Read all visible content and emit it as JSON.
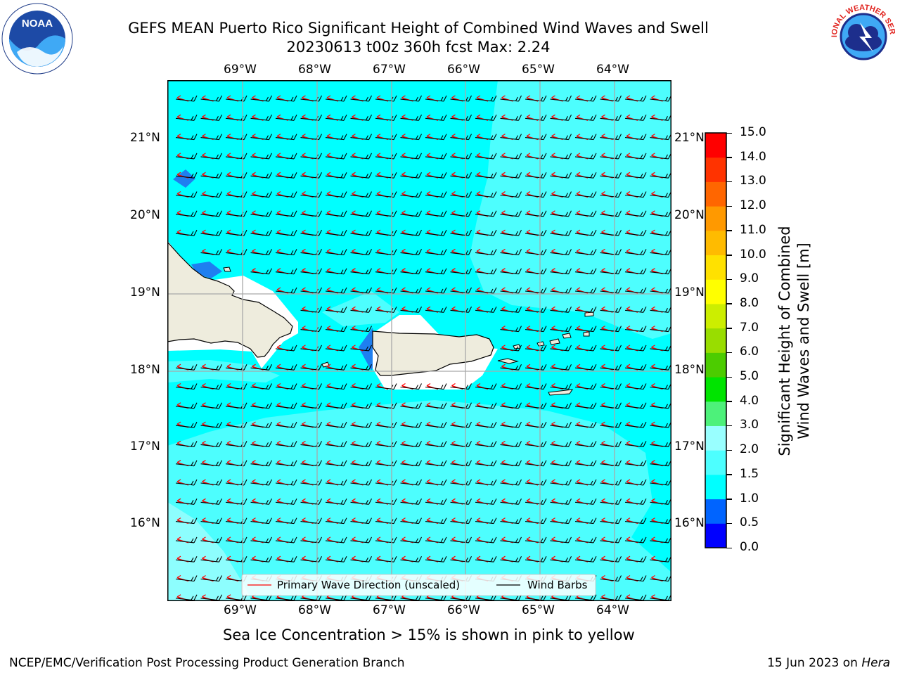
{
  "header": {
    "title_line1": "GEFS MEAN Puerto Rico Significant Height of Combined Wind Waves and Swell",
    "title_line2": "20230613 t00z 360h fcst   Max: 2.24"
  },
  "logos": {
    "left_name": "NOAA",
    "right_name": "NATIONAL WEATHER SERVICE",
    "left_ring_text": "NATIONAL OCEANIC AND ATMOSPHERIC ADMINISTRATION · U.S. DEPARTMENT OF COMMERCE"
  },
  "map": {
    "lon_labels": [
      "69°W",
      "68°W",
      "67°W",
      "66°W",
      "65°W",
      "64°W"
    ],
    "lat_labels": [
      "21°N",
      "20°N",
      "19°N",
      "18°N",
      "17°N",
      "16°N"
    ],
    "colors": {
      "ocean_main": "#00ffff",
      "ocean_light": "#4dfefe",
      "ocean_lighter": "#8dfefe",
      "land": "#eeecdd",
      "grid": "#a9a9a9",
      "arrow": "#ff0000",
      "barb": "#000000"
    },
    "legend": {
      "wave_label": "Primary Wave Direction (unscaled)",
      "barb_label": "Wind Barbs"
    }
  },
  "colorbar": {
    "label_line1": "Significant Height of Combined",
    "label_line2": "Wind Waves and Swell [m]",
    "ticks": [
      "0.0",
      "0.5",
      "1.0",
      "1.5",
      "2.0",
      "3.0",
      "4.0",
      "5.0",
      "6.0",
      "7.0",
      "8.0",
      "9.0",
      "10.0",
      "11.0",
      "12.0",
      "13.0",
      "14.0",
      "15.0"
    ],
    "colors": [
      "#0000ff",
      "#0064ff",
      "#00ffff",
      "#4dffff",
      "#99ffff",
      "#4df17a",
      "#00e400",
      "#4ccc00",
      "#99dd00",
      "#ccee00",
      "#ffff00",
      "#ffe100",
      "#ffbb00",
      "#ff9900",
      "#ff6600",
      "#ff3300",
      "#ff0000"
    ]
  },
  "caption": "Sea Ice Concentration > 15% is shown in pink to yellow",
  "footer": {
    "left": "NCEP/EMC/Verification Post Processing Product Generation Branch",
    "right_prefix": "15 Jun 2023 on ",
    "right_machine": "Hera"
  }
}
